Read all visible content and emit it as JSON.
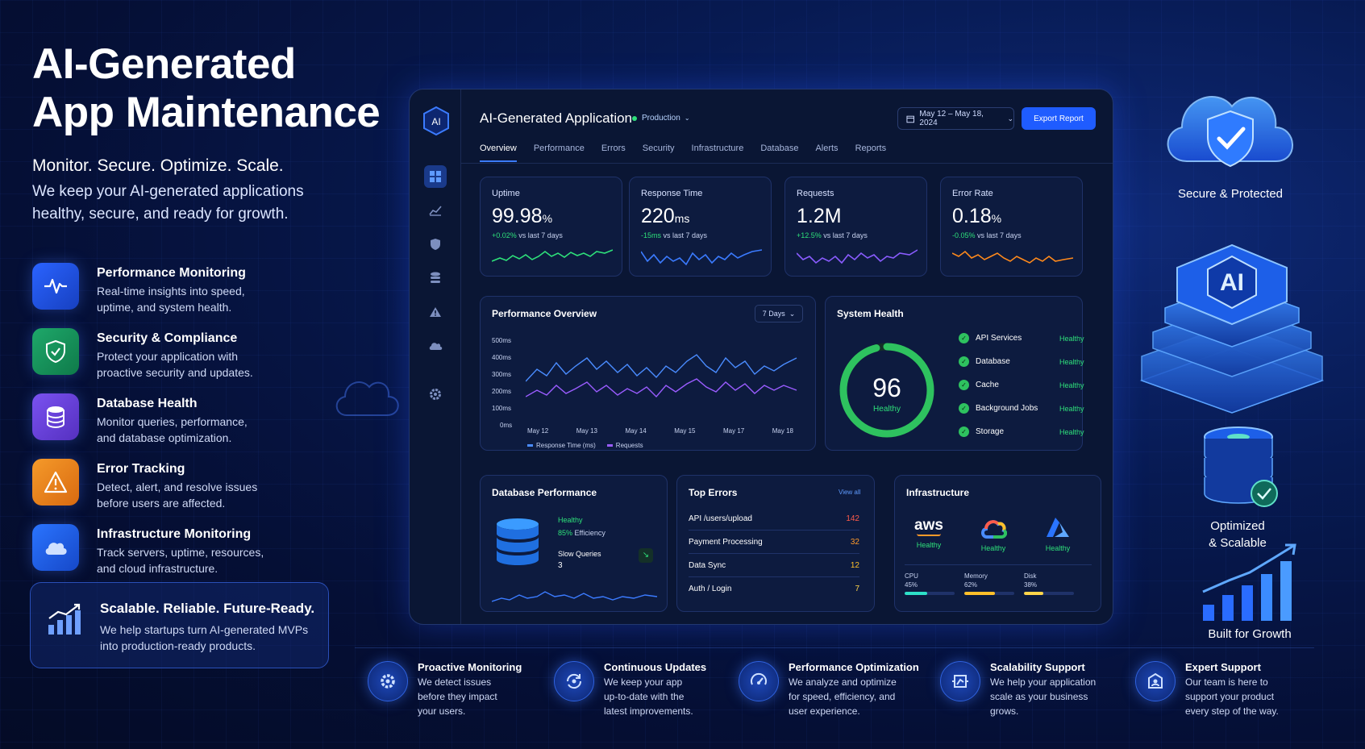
{
  "hero": {
    "title_line1": "AI-Generated",
    "title_line2": "App Maintenance",
    "subtitle": "Monitor. Secure. Optimize. Scale.",
    "desc_line1": "We keep your AI-generated applications",
    "desc_line2": "healthy, secure, and ready for growth."
  },
  "features": [
    {
      "title": "Performance Monitoring",
      "line1": "Real-time insights into speed,",
      "line2": "uptime, and system health.",
      "icon": "pulse-icon",
      "color": "#2a63ff"
    },
    {
      "title": "Security & Compliance",
      "line1": "Protect your application with",
      "line2": "proactive security and updates.",
      "icon": "shield-icon",
      "color": "#1ea86a"
    },
    {
      "title": "Database Health",
      "line1": "Monitor queries, performance,",
      "line2": "and database optimization.",
      "icon": "database-icon",
      "color": "#7048e8"
    },
    {
      "title": "Error Tracking",
      "line1": "Detect, alert, and resolve issues",
      "line2": "before users are affected.",
      "icon": "warning-icon",
      "color": "#f08a1c"
    },
    {
      "title": "Infrastructure Monitoring",
      "line1": "Track servers, uptime, resources,",
      "line2": "and cloud infrastructure.",
      "icon": "cloud-icon",
      "color": "#2a74ff"
    }
  ],
  "cta": {
    "title": "Scalable. Reliable. Future-Ready.",
    "line1": "We help startups turn AI-generated MVPs",
    "line2": "into production-ready products."
  },
  "dashboard": {
    "logo": "AI",
    "app_title": "AI-Generated Application",
    "env": "Production",
    "date_range": "May 12 – May 18, 2024",
    "export_label": "Export Report",
    "tabs": [
      "Overview",
      "Performance",
      "Errors",
      "Security",
      "Infrastructure",
      "Database",
      "Alerts",
      "Reports"
    ],
    "kpis": [
      {
        "label": "Uptime",
        "value": "99.98",
        "unit": "%",
        "delta": "+0.02%",
        "delta_note": "vs last 7 days",
        "color": "#2ee07a"
      },
      {
        "label": "Response Time",
        "value": "220",
        "unit": "ms",
        "delta": "-15ms",
        "delta_note": "vs last 7 days",
        "color": "#3b7bff"
      },
      {
        "label": "Requests",
        "value": "1.2M",
        "unit": "",
        "delta": "+12.5%",
        "delta_note": "vs last 7 days",
        "color": "#8a5cff"
      },
      {
        "label": "Error Rate",
        "value": "0.18",
        "unit": "%",
        "delta": "-0.05%",
        "delta_note": "vs last 7 days",
        "color": "#ff8a1c"
      }
    ],
    "perf": {
      "title": "Performance Overview",
      "range": "7 Days",
      "yticks": [
        "500ms",
        "400ms",
        "300ms",
        "200ms",
        "100ms",
        "0ms"
      ],
      "xticks": [
        "May 12",
        "May 13",
        "May 14",
        "May 15",
        "May 17",
        "May 18"
      ],
      "legend1": "Response Time (ms)",
      "legend2": "Requests"
    },
    "health": {
      "title": "System Health",
      "score": "96",
      "score_label": "Healthy",
      "score_fraction": 0.96,
      "items": [
        {
          "name": "API Services",
          "status": "Healthy"
        },
        {
          "name": "Database",
          "status": "Healthy"
        },
        {
          "name": "Cache",
          "status": "Healthy"
        },
        {
          "name": "Background Jobs",
          "status": "Healthy"
        },
        {
          "name": "Storage",
          "status": "Healthy"
        }
      ]
    },
    "db": {
      "title": "Database Performance",
      "status": "Healthy",
      "efficiency": "85%",
      "efficiency_label": "Efficiency",
      "slow_label": "Slow Queries",
      "slow_value": "3"
    },
    "errors": {
      "title": "Top Errors",
      "view_all": "View all",
      "rows": [
        {
          "name": "API /users/upload",
          "count": "142",
          "color": "#ff5b4a"
        },
        {
          "name": "Payment Processing",
          "count": "32",
          "color": "#ff9a2a"
        },
        {
          "name": "Data Sync",
          "count": "12",
          "color": "#ffc02a"
        },
        {
          "name": "Auth / Login",
          "count": "7",
          "color": "#ffd54a"
        }
      ]
    },
    "infra": {
      "title": "Infrastructure",
      "providers": [
        {
          "name": "aws",
          "status": "Healthy"
        },
        {
          "name": "gcp",
          "status": "Healthy"
        },
        {
          "name": "azure",
          "status": "Healthy"
        }
      ],
      "metrics": [
        {
          "label": "CPU",
          "value": "45%",
          "fraction": 0.45,
          "color": "#2ee0c8"
        },
        {
          "label": "Memory",
          "value": "62%",
          "fraction": 0.62,
          "color": "#ffc02a"
        },
        {
          "label": "Disk",
          "value": "38%",
          "fraction": 0.38,
          "color": "#ffd54a"
        }
      ]
    }
  },
  "right": {
    "secure": "Secure & Protected",
    "ai_badge": "AI",
    "optimized_line1": "Optimized",
    "optimized_line2": "& Scalable",
    "growth": "Built for Growth"
  },
  "bottom": [
    {
      "title": "Proactive Monitoring",
      "l1": "We detect issues",
      "l2": "before they impact",
      "l3": "your users.",
      "icon": "gear-icon"
    },
    {
      "title": "Continuous Updates",
      "l1": "We keep your app",
      "l2": "up-to-date with the",
      "l3": "latest improvements.",
      "icon": "update-icon"
    },
    {
      "title": "Performance Optimization",
      "l1": "We analyze and optimize",
      "l2": "for speed, efficiency, and",
      "l3": "user experience.",
      "icon": "speed-icon"
    },
    {
      "title": "Scalability Support",
      "l1": "We help your application",
      "l2": "scale as your business",
      "l3": "grows.",
      "icon": "scale-icon"
    },
    {
      "title": "Expert Support",
      "l1": "Our team is here to",
      "l2": "support your product",
      "l3": "every step of the way.",
      "icon": "support-icon"
    }
  ]
}
